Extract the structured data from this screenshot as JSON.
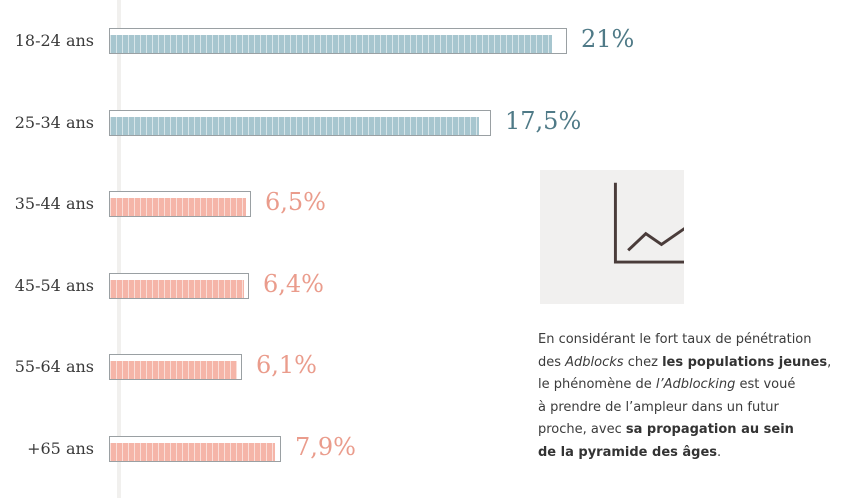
{
  "chart_data": {
    "type": "bar",
    "orientation": "horizontal",
    "categories": [
      "18-24 ans",
      "25-34 ans",
      "35-44 ans",
      "45-54 ans",
      "55-64 ans",
      "+65 ans"
    ],
    "values": [
      21,
      17.5,
      6.5,
      6.4,
      6.1,
      7.9
    ],
    "value_labels": [
      "21%",
      "17,5%",
      "6,5%",
      "6,4%",
      "6,1%",
      "7,9%"
    ],
    "value_fill_fraction": [
      0.97,
      0.97,
      0.97,
      0.97,
      0.97,
      0.97
    ],
    "bar_colors": [
      "#a7c6cf",
      "#a7c6cf",
      "#f5b5a8",
      "#f5b5a8",
      "#f5b5a8",
      "#f5b5a8"
    ],
    "label_colors": [
      "#4f7a87",
      "#4f7a87",
      "#ea9c8c",
      "#ea9c8c",
      "#ea9c8c",
      "#ea9c8c"
    ],
    "xlim": [
      0,
      21
    ],
    "grid": false,
    "legend": "none"
  },
  "icon": {
    "name": "trending-up-chart-icon",
    "color": "#4a3c3a"
  },
  "note": {
    "l1": "En considérant le fort taux de pénétration",
    "l2_a": "des ",
    "l2_i": "Adblocks",
    "l2_b": " chez ",
    "l2_bold": "les populations jeunes",
    "l2_c": ",",
    "l3_a": "le phénomène de ",
    "l3_i": "l’Adblocking",
    "l3_b": " est voué",
    "l4": "à prendre de l’ampleur dans un futur",
    "l5_a": "proche, avec ",
    "l5_bold": "sa propagation au sein",
    "l6_bold": "de la pyramide des âges",
    "l6_end": "."
  }
}
